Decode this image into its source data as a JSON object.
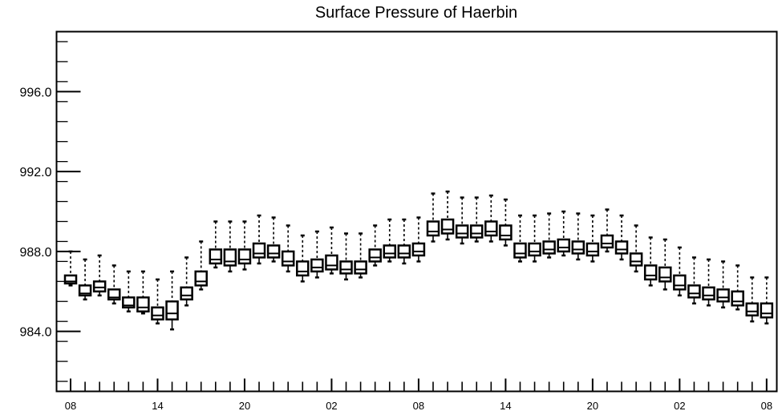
{
  "chart_data": {
    "type": "box",
    "title": "Surface Pressure of Haerbin",
    "xlabel": "",
    "ylabel": "",
    "ylim": [
      981.0,
      999.0
    ],
    "y_ticks": [
      984.0,
      988.0,
      992.0,
      996.0
    ],
    "y_tick_labels": [
      "984.0",
      "988.0",
      "992.0",
      "996.0"
    ],
    "x_tick_labels": [
      "08",
      "14",
      "20",
      "02",
      "08",
      "14",
      "20",
      "02",
      "08"
    ],
    "x_tick_positions": [
      0,
      6,
      12,
      18,
      24,
      30,
      36,
      42,
      48
    ],
    "grid": false,
    "series": [
      {
        "boxes": [
          {
            "x": 0,
            "min": 986.3,
            "q1": 986.4,
            "median": 986.5,
            "q3": 986.8,
            "max": 988.0
          },
          {
            "x": 1,
            "min": 985.6,
            "q1": 985.8,
            "median": 985.9,
            "q3": 986.3,
            "max": 987.6
          },
          {
            "x": 2,
            "min": 985.8,
            "q1": 986.0,
            "median": 986.2,
            "q3": 986.5,
            "max": 987.8
          },
          {
            "x": 3,
            "min": 985.4,
            "q1": 985.6,
            "median": 985.7,
            "q3": 986.1,
            "max": 987.3
          },
          {
            "x": 4,
            "min": 985.0,
            "q1": 985.2,
            "median": 985.3,
            "q3": 985.7,
            "max": 987.0
          },
          {
            "x": 5,
            "min": 984.9,
            "q1": 985.0,
            "median": 985.2,
            "q3": 985.7,
            "max": 987.0
          },
          {
            "x": 6,
            "min": 984.4,
            "q1": 984.6,
            "median": 984.8,
            "q3": 985.2,
            "max": 986.6
          },
          {
            "x": 7,
            "min": 984.1,
            "q1": 984.6,
            "median": 984.9,
            "q3": 985.5,
            "max": 987.0
          },
          {
            "x": 8,
            "min": 985.3,
            "q1": 985.6,
            "median": 985.8,
            "q3": 986.2,
            "max": 987.7
          },
          {
            "x": 9,
            "min": 986.1,
            "q1": 986.3,
            "median": 986.5,
            "q3": 987.0,
            "max": 988.5
          },
          {
            "x": 10,
            "min": 987.2,
            "q1": 987.4,
            "median": 987.6,
            "q3": 988.1,
            "max": 989.5
          },
          {
            "x": 11,
            "min": 987.0,
            "q1": 987.3,
            "median": 987.5,
            "q3": 988.1,
            "max": 989.5
          },
          {
            "x": 12,
            "min": 987.1,
            "q1": 987.4,
            "median": 987.6,
            "q3": 988.1,
            "max": 989.5
          },
          {
            "x": 13,
            "min": 987.4,
            "q1": 987.7,
            "median": 987.9,
            "q3": 988.4,
            "max": 989.8
          },
          {
            "x": 14,
            "min": 987.5,
            "q1": 987.7,
            "median": 987.9,
            "q3": 988.3,
            "max": 989.7
          },
          {
            "x": 15,
            "min": 987.0,
            "q1": 987.3,
            "median": 987.5,
            "q3": 988.0,
            "max": 989.3
          },
          {
            "x": 16,
            "min": 986.5,
            "q1": 986.8,
            "median": 987.0,
            "q3": 987.5,
            "max": 988.8
          },
          {
            "x": 17,
            "min": 986.7,
            "q1": 987.0,
            "median": 987.2,
            "q3": 987.6,
            "max": 989.0
          },
          {
            "x": 18,
            "min": 986.9,
            "q1": 987.1,
            "median": 987.3,
            "q3": 987.8,
            "max": 989.2
          },
          {
            "x": 19,
            "min": 986.6,
            "q1": 986.9,
            "median": 987.1,
            "q3": 987.5,
            "max": 988.9
          },
          {
            "x": 20,
            "min": 986.7,
            "q1": 986.9,
            "median": 987.1,
            "q3": 987.5,
            "max": 988.9
          },
          {
            "x": 21,
            "min": 987.3,
            "q1": 987.5,
            "median": 987.7,
            "q3": 988.1,
            "max": 989.3
          },
          {
            "x": 22,
            "min": 987.5,
            "q1": 987.7,
            "median": 987.9,
            "q3": 988.3,
            "max": 989.6
          },
          {
            "x": 23,
            "min": 987.4,
            "q1": 987.7,
            "median": 987.9,
            "q3": 988.3,
            "max": 989.6
          },
          {
            "x": 24,
            "min": 987.5,
            "q1": 987.8,
            "median": 988.0,
            "q3": 988.4,
            "max": 989.7
          },
          {
            "x": 25,
            "min": 988.5,
            "q1": 988.8,
            "median": 989.0,
            "q3": 989.5,
            "max": 990.9
          },
          {
            "x": 26,
            "min": 988.6,
            "q1": 988.9,
            "median": 989.1,
            "q3": 989.6,
            "max": 991.0
          },
          {
            "x": 27,
            "min": 988.4,
            "q1": 988.7,
            "median": 988.9,
            "q3": 989.3,
            "max": 990.7
          },
          {
            "x": 28,
            "min": 988.5,
            "q1": 988.7,
            "median": 988.9,
            "q3": 989.3,
            "max": 990.7
          },
          {
            "x": 29,
            "min": 988.5,
            "q1": 988.8,
            "median": 989.0,
            "q3": 989.5,
            "max": 990.8
          },
          {
            "x": 30,
            "min": 988.3,
            "q1": 988.6,
            "median": 988.8,
            "q3": 989.3,
            "max": 990.6
          },
          {
            "x": 31,
            "min": 987.5,
            "q1": 987.7,
            "median": 987.9,
            "q3": 988.4,
            "max": 989.8
          },
          {
            "x": 32,
            "min": 987.5,
            "q1": 987.8,
            "median": 988.0,
            "q3": 988.4,
            "max": 989.8
          },
          {
            "x": 33,
            "min": 987.7,
            "q1": 987.9,
            "median": 988.1,
            "q3": 988.5,
            "max": 989.9
          },
          {
            "x": 34,
            "min": 987.8,
            "q1": 988.0,
            "median": 988.2,
            "q3": 988.6,
            "max": 990.0
          },
          {
            "x": 35,
            "min": 987.6,
            "q1": 987.9,
            "median": 988.1,
            "q3": 988.5,
            "max": 989.9
          },
          {
            "x": 36,
            "min": 987.5,
            "q1": 987.8,
            "median": 988.0,
            "q3": 988.4,
            "max": 989.8
          },
          {
            "x": 37,
            "min": 988.0,
            "q1": 988.2,
            "median": 988.4,
            "q3": 988.8,
            "max": 990.1
          },
          {
            "x": 38,
            "min": 987.6,
            "q1": 987.9,
            "median": 988.1,
            "q3": 988.5,
            "max": 989.8
          },
          {
            "x": 39,
            "min": 987.0,
            "q1": 987.3,
            "median": 987.5,
            "q3": 987.9,
            "max": 989.3
          },
          {
            "x": 40,
            "min": 986.3,
            "q1": 986.6,
            "median": 986.8,
            "q3": 987.3,
            "max": 988.7
          },
          {
            "x": 41,
            "min": 986.1,
            "q1": 986.5,
            "median": 986.7,
            "q3": 987.2,
            "max": 988.6
          },
          {
            "x": 42,
            "min": 985.8,
            "q1": 986.1,
            "median": 986.3,
            "q3": 986.8,
            "max": 988.2
          },
          {
            "x": 43,
            "min": 985.4,
            "q1": 985.7,
            "median": 985.9,
            "q3": 986.3,
            "max": 987.7
          },
          {
            "x": 44,
            "min": 985.3,
            "q1": 985.6,
            "median": 985.8,
            "q3": 986.2,
            "max": 987.6
          },
          {
            "x": 45,
            "min": 985.2,
            "q1": 985.5,
            "median": 985.7,
            "q3": 986.1,
            "max": 987.5
          },
          {
            "x": 46,
            "min": 985.1,
            "q1": 985.3,
            "median": 985.5,
            "q3": 986.0,
            "max": 987.3
          },
          {
            "x": 47,
            "min": 984.5,
            "q1": 984.8,
            "median": 985.0,
            "q3": 985.4,
            "max": 986.7
          },
          {
            "x": 48,
            "min": 984.4,
            "q1": 984.7,
            "median": 984.9,
            "q3": 985.4,
            "max": 986.7
          }
        ]
      }
    ]
  }
}
